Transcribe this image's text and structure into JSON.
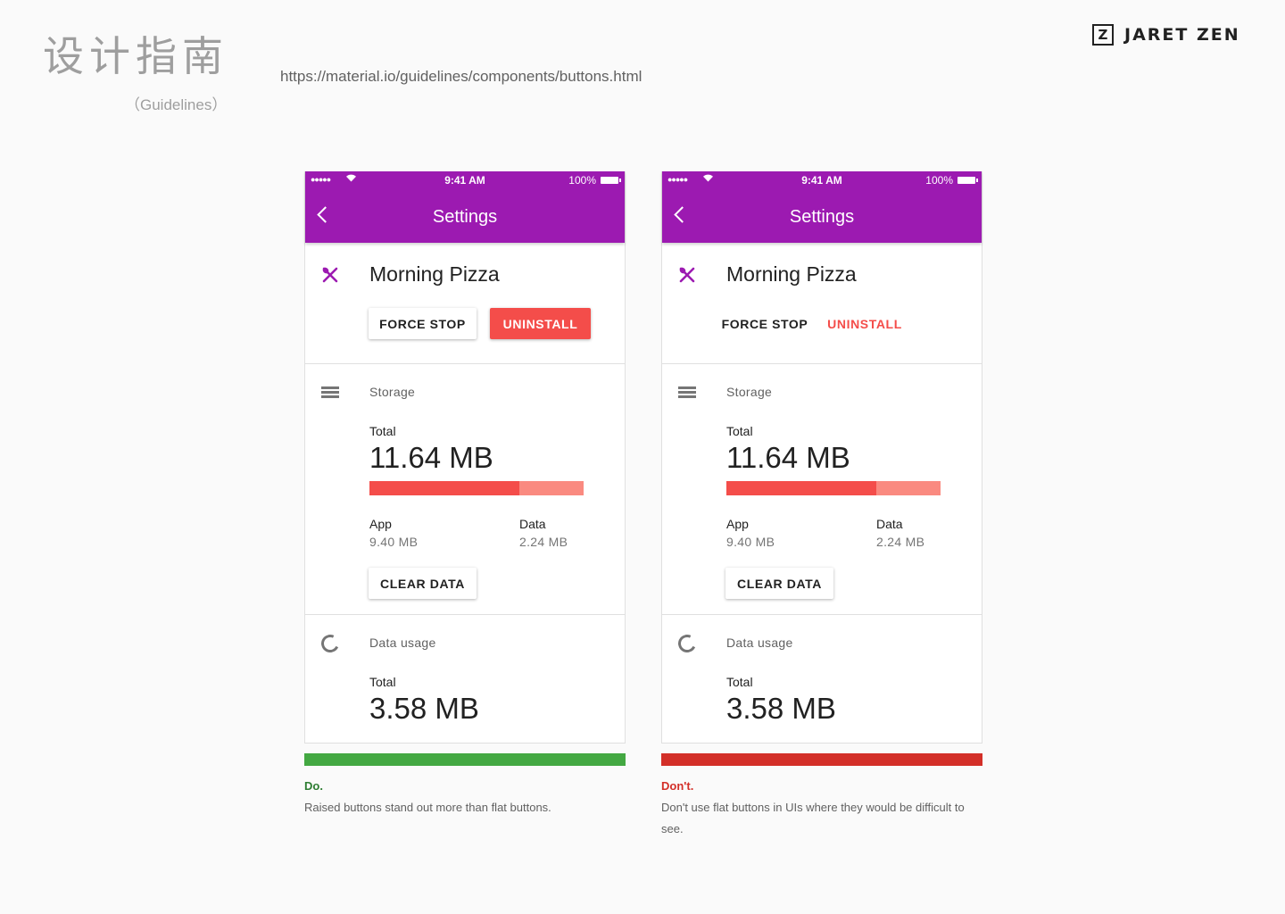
{
  "header": {
    "title": "设计指南",
    "subtitle": "（Guidelines）",
    "url": "https://material.io/guidelines/components/buttons.html",
    "brand_logo": "Z",
    "brand_name": "JARET ZEN"
  },
  "colors": {
    "app_bar": "#9c1ab1",
    "accent_red": "#f44d4a",
    "do_green": "#43a842",
    "dont_red": "#d32f28"
  },
  "panels": {
    "left": {
      "status": {
        "signal": "●●●●●",
        "time": "9:41 AM",
        "battery": "100%"
      },
      "screen_title": "Settings",
      "app_name": "Morning Pizza",
      "app_icon": "restaurant-icon",
      "force_stop_label": "FORCE STOP",
      "uninstall_label": "UNINSTALL",
      "button_style": "raised",
      "storage": {
        "label": "Storage",
        "total_label": "Total",
        "total": "11.64 MB",
        "app_label": "App",
        "app_value": "9.40 MB",
        "app_fraction": 0.7,
        "data_label": "Data",
        "data_value": "2.24 MB",
        "clear_label": "CLEAR DATA"
      },
      "usage": {
        "label": "Data usage",
        "total_label": "Total",
        "total": "3.58 MB"
      },
      "verdict": "Do.",
      "note": "Raised buttons stand out more than flat buttons."
    },
    "right": {
      "status": {
        "signal": "●●●●●",
        "time": "9:41 AM",
        "battery": "100%"
      },
      "screen_title": "Settings",
      "app_name": "Morning Pizza",
      "app_icon": "restaurant-icon",
      "force_stop_label": "FORCE STOP",
      "uninstall_label": "UNINSTALL",
      "button_style": "flat",
      "storage": {
        "label": "Storage",
        "total_label": "Total",
        "total": "11.64 MB",
        "app_label": "App",
        "app_value": "9.40 MB",
        "app_fraction": 0.7,
        "data_label": "Data",
        "data_value": "2.24 MB",
        "clear_label": "CLEAR DATA"
      },
      "usage": {
        "label": "Data usage",
        "total_label": "Total",
        "total": "3.58 MB"
      },
      "verdict": "Don't.",
      "note": "Don't use flat buttons in UIs where they would be difficult to see."
    }
  }
}
